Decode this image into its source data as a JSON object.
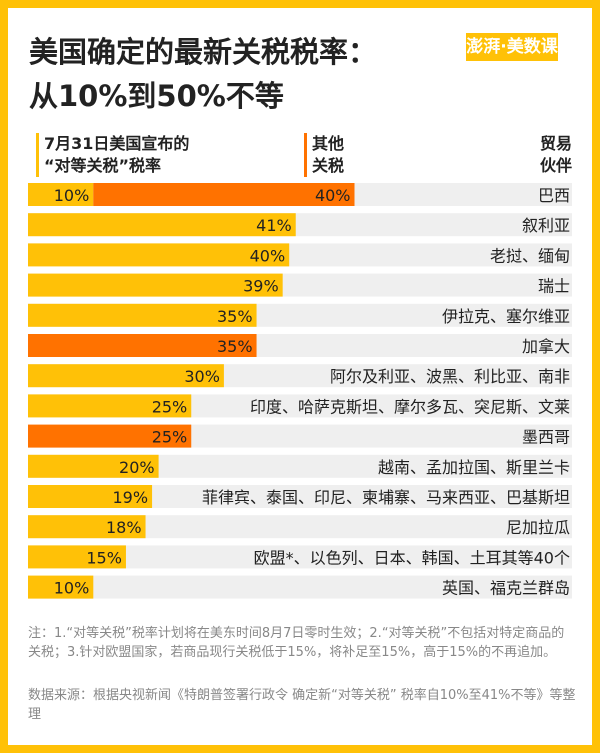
{
  "title_line1": "美国确定的最新关税税率：",
  "title_line2": "从10%到50%不等",
  "logo": "澎湃·美数课",
  "colors": {
    "reciprocal": "#FFC107",
    "other": "#FF7200",
    "track": "#EFEFEF",
    "frame": "#FFC107"
  },
  "chart_data": {
    "type": "bar",
    "orientation": "horizontal",
    "stacked": true,
    "legend": {
      "reciprocal_line1": "7月31日美国宣布的",
      "reciprocal_line2": "“对等关税”税率",
      "other_line1": "其他",
      "other_line2": "关税",
      "partner_line1": "贸易",
      "partner_line2": "伙伴"
    },
    "xlim": [
      0,
      83
    ],
    "rows": [
      {
        "partner": "巴西",
        "reciprocal": 10,
        "other": 40,
        "labels": [
          "10%",
          "40%"
        ]
      },
      {
        "partner": "叙利亚",
        "reciprocal": 41,
        "labels": [
          "41%"
        ]
      },
      {
        "partner": "老挝、缅甸",
        "reciprocal": 40,
        "labels": [
          "40%"
        ]
      },
      {
        "partner": "瑞士",
        "reciprocal": 39,
        "labels": [
          "39%"
        ]
      },
      {
        "partner": "伊拉克、塞尔维亚",
        "reciprocal": 35,
        "labels": [
          "35%"
        ]
      },
      {
        "partner": "加拿大",
        "other_only": 35,
        "labels": [
          "35%"
        ]
      },
      {
        "partner": "阿尔及利亚、波黑、利比亚、南非",
        "reciprocal": 30,
        "labels": [
          "30%"
        ]
      },
      {
        "partner": "印度、哈萨克斯坦、摩尔多瓦、突尼斯、文莱",
        "reciprocal": 25,
        "labels": [
          "25%"
        ]
      },
      {
        "partner": "墨西哥",
        "other_only": 25,
        "labels": [
          "25%"
        ]
      },
      {
        "partner": "越南、孟加拉国、斯里兰卡",
        "reciprocal": 20,
        "labels": [
          "20%"
        ]
      },
      {
        "partner": "菲律宾、泰国、印尼、柬埔寨、马来西亚、巴基斯坦",
        "reciprocal": 19,
        "labels": [
          "19%"
        ]
      },
      {
        "partner": "尼加拉瓜",
        "reciprocal": 18,
        "labels": [
          "18%"
        ]
      },
      {
        "partner": "欧盟*、以色列、日本、韩国、土耳其等40个",
        "reciprocal": 15,
        "labels": [
          "15%"
        ]
      },
      {
        "partner": "英国、福克兰群岛",
        "reciprocal": 10,
        "labels": [
          "10%"
        ]
      }
    ]
  },
  "note": "注：1.“对等关税”税率计划将在美东时间8月7日零时生效；2.“对等关税”不包括对特定商品的关税；3.针对欧盟国家，若商品现行关税低于15%，将补足至15%，高于15%的不再追加。",
  "source": "数据来源：根据央视新闻《特朗普签署行政令  确定新“对等关税” 税率自10%至41%不等》等整理"
}
